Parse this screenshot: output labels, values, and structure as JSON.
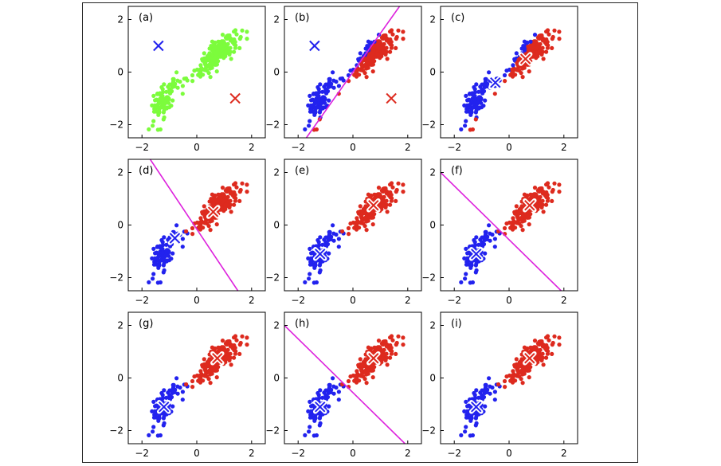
{
  "chart_data": {
    "type": "scatter",
    "title": "",
    "xlabel": "",
    "ylabel": "",
    "xlim": [
      -2.5,
      2.5
    ],
    "ylim": [
      -2.5,
      2.5
    ],
    "xticks": [
      -2,
      0,
      2
    ],
    "yticks": [
      -2,
      0,
      2
    ],
    "tick_labels": {
      "x": [
        "−2",
        "0",
        "2"
      ],
      "y": [
        "−2",
        "0",
        "2"
      ]
    },
    "grid": false,
    "colors": {
      "unassigned": "#7CFC3C",
      "cluster_blue": "#2222EE",
      "cluster_red": "#DD2A1E",
      "boundary": "#DD22DD",
      "centroid_outline": "#ffffff"
    },
    "data_generation": {
      "seed": 7,
      "blue_group": {
        "count": 90,
        "center": [
          -1.2,
          -1.1
        ],
        "spread": [
          0.22,
          0.42
        ],
        "correlation": 0.6
      },
      "red_group": {
        "count": 190,
        "center": [
          0.75,
          0.7
        ],
        "spread": [
          0.35,
          0.35
        ],
        "correlation": 0.7
      },
      "bridge": {
        "count": 14,
        "from": [
          -0.9,
          -0.6
        ],
        "to": [
          0.2,
          0.1
        ]
      }
    },
    "panels": [
      {
        "label": "(a)",
        "coloring": "all-green",
        "centroids": [
          {
            "color": "blue",
            "x": -1.4,
            "y": 1.0,
            "style": "plain"
          },
          {
            "color": "red",
            "x": 1.4,
            "y": -1.0,
            "style": "plain"
          }
        ]
      },
      {
        "label": "(b)",
        "coloring": "split",
        "boundary": [
          [
            -1.7,
            -2.5
          ],
          [
            1.7,
            2.5
          ]
        ],
        "centroids": [
          {
            "color": "blue",
            "x": -1.4,
            "y": 1.0,
            "style": "plain"
          },
          {
            "color": "red",
            "x": 1.4,
            "y": -1.0,
            "style": "plain"
          }
        ]
      },
      {
        "label": "(c)",
        "coloring": "split",
        "centroids": [
          {
            "color": "blue",
            "x": -0.5,
            "y": -0.4,
            "style": "outlined"
          },
          {
            "color": "red",
            "x": 0.6,
            "y": 0.5,
            "style": "outlined"
          }
        ]
      },
      {
        "label": "(d)",
        "coloring": "final",
        "boundary": [
          [
            -1.7,
            2.5
          ],
          [
            1.5,
            -2.5
          ]
        ],
        "centroids": [
          {
            "color": "blue",
            "x": -0.8,
            "y": -0.5,
            "style": "outlined"
          },
          {
            "color": "red",
            "x": 0.6,
            "y": 0.5,
            "style": "outlined"
          }
        ]
      },
      {
        "label": "(e)",
        "coloring": "final",
        "centroids": [
          {
            "color": "blue",
            "x": -1.2,
            "y": -1.1,
            "style": "outlined"
          },
          {
            "color": "red",
            "x": 0.75,
            "y": 0.75,
            "style": "outlined"
          }
        ]
      },
      {
        "label": "(f)",
        "coloring": "final",
        "boundary": [
          [
            -2.5,
            2.0
          ],
          [
            1.9,
            -2.5
          ]
        ],
        "centroids": [
          {
            "color": "blue",
            "x": -1.2,
            "y": -1.1,
            "style": "outlined"
          },
          {
            "color": "red",
            "x": 0.75,
            "y": 0.75,
            "style": "outlined"
          }
        ]
      },
      {
        "label": "(g)",
        "coloring": "final",
        "centroids": [
          {
            "color": "blue",
            "x": -1.2,
            "y": -1.1,
            "style": "outlined"
          },
          {
            "color": "red",
            "x": 0.75,
            "y": 0.75,
            "style": "outlined"
          }
        ]
      },
      {
        "label": "(h)",
        "coloring": "final",
        "boundary": [
          [
            -2.5,
            2.0
          ],
          [
            1.9,
            -2.5
          ]
        ],
        "centroids": [
          {
            "color": "blue",
            "x": -1.2,
            "y": -1.1,
            "style": "outlined"
          },
          {
            "color": "red",
            "x": 0.75,
            "y": 0.75,
            "style": "outlined"
          }
        ]
      },
      {
        "label": "(i)",
        "coloring": "final",
        "centroids": [
          {
            "color": "blue",
            "x": -1.2,
            "y": -1.1,
            "style": "outlined"
          },
          {
            "color": "red",
            "x": 0.75,
            "y": 0.75,
            "style": "outlined"
          }
        ]
      }
    ]
  }
}
